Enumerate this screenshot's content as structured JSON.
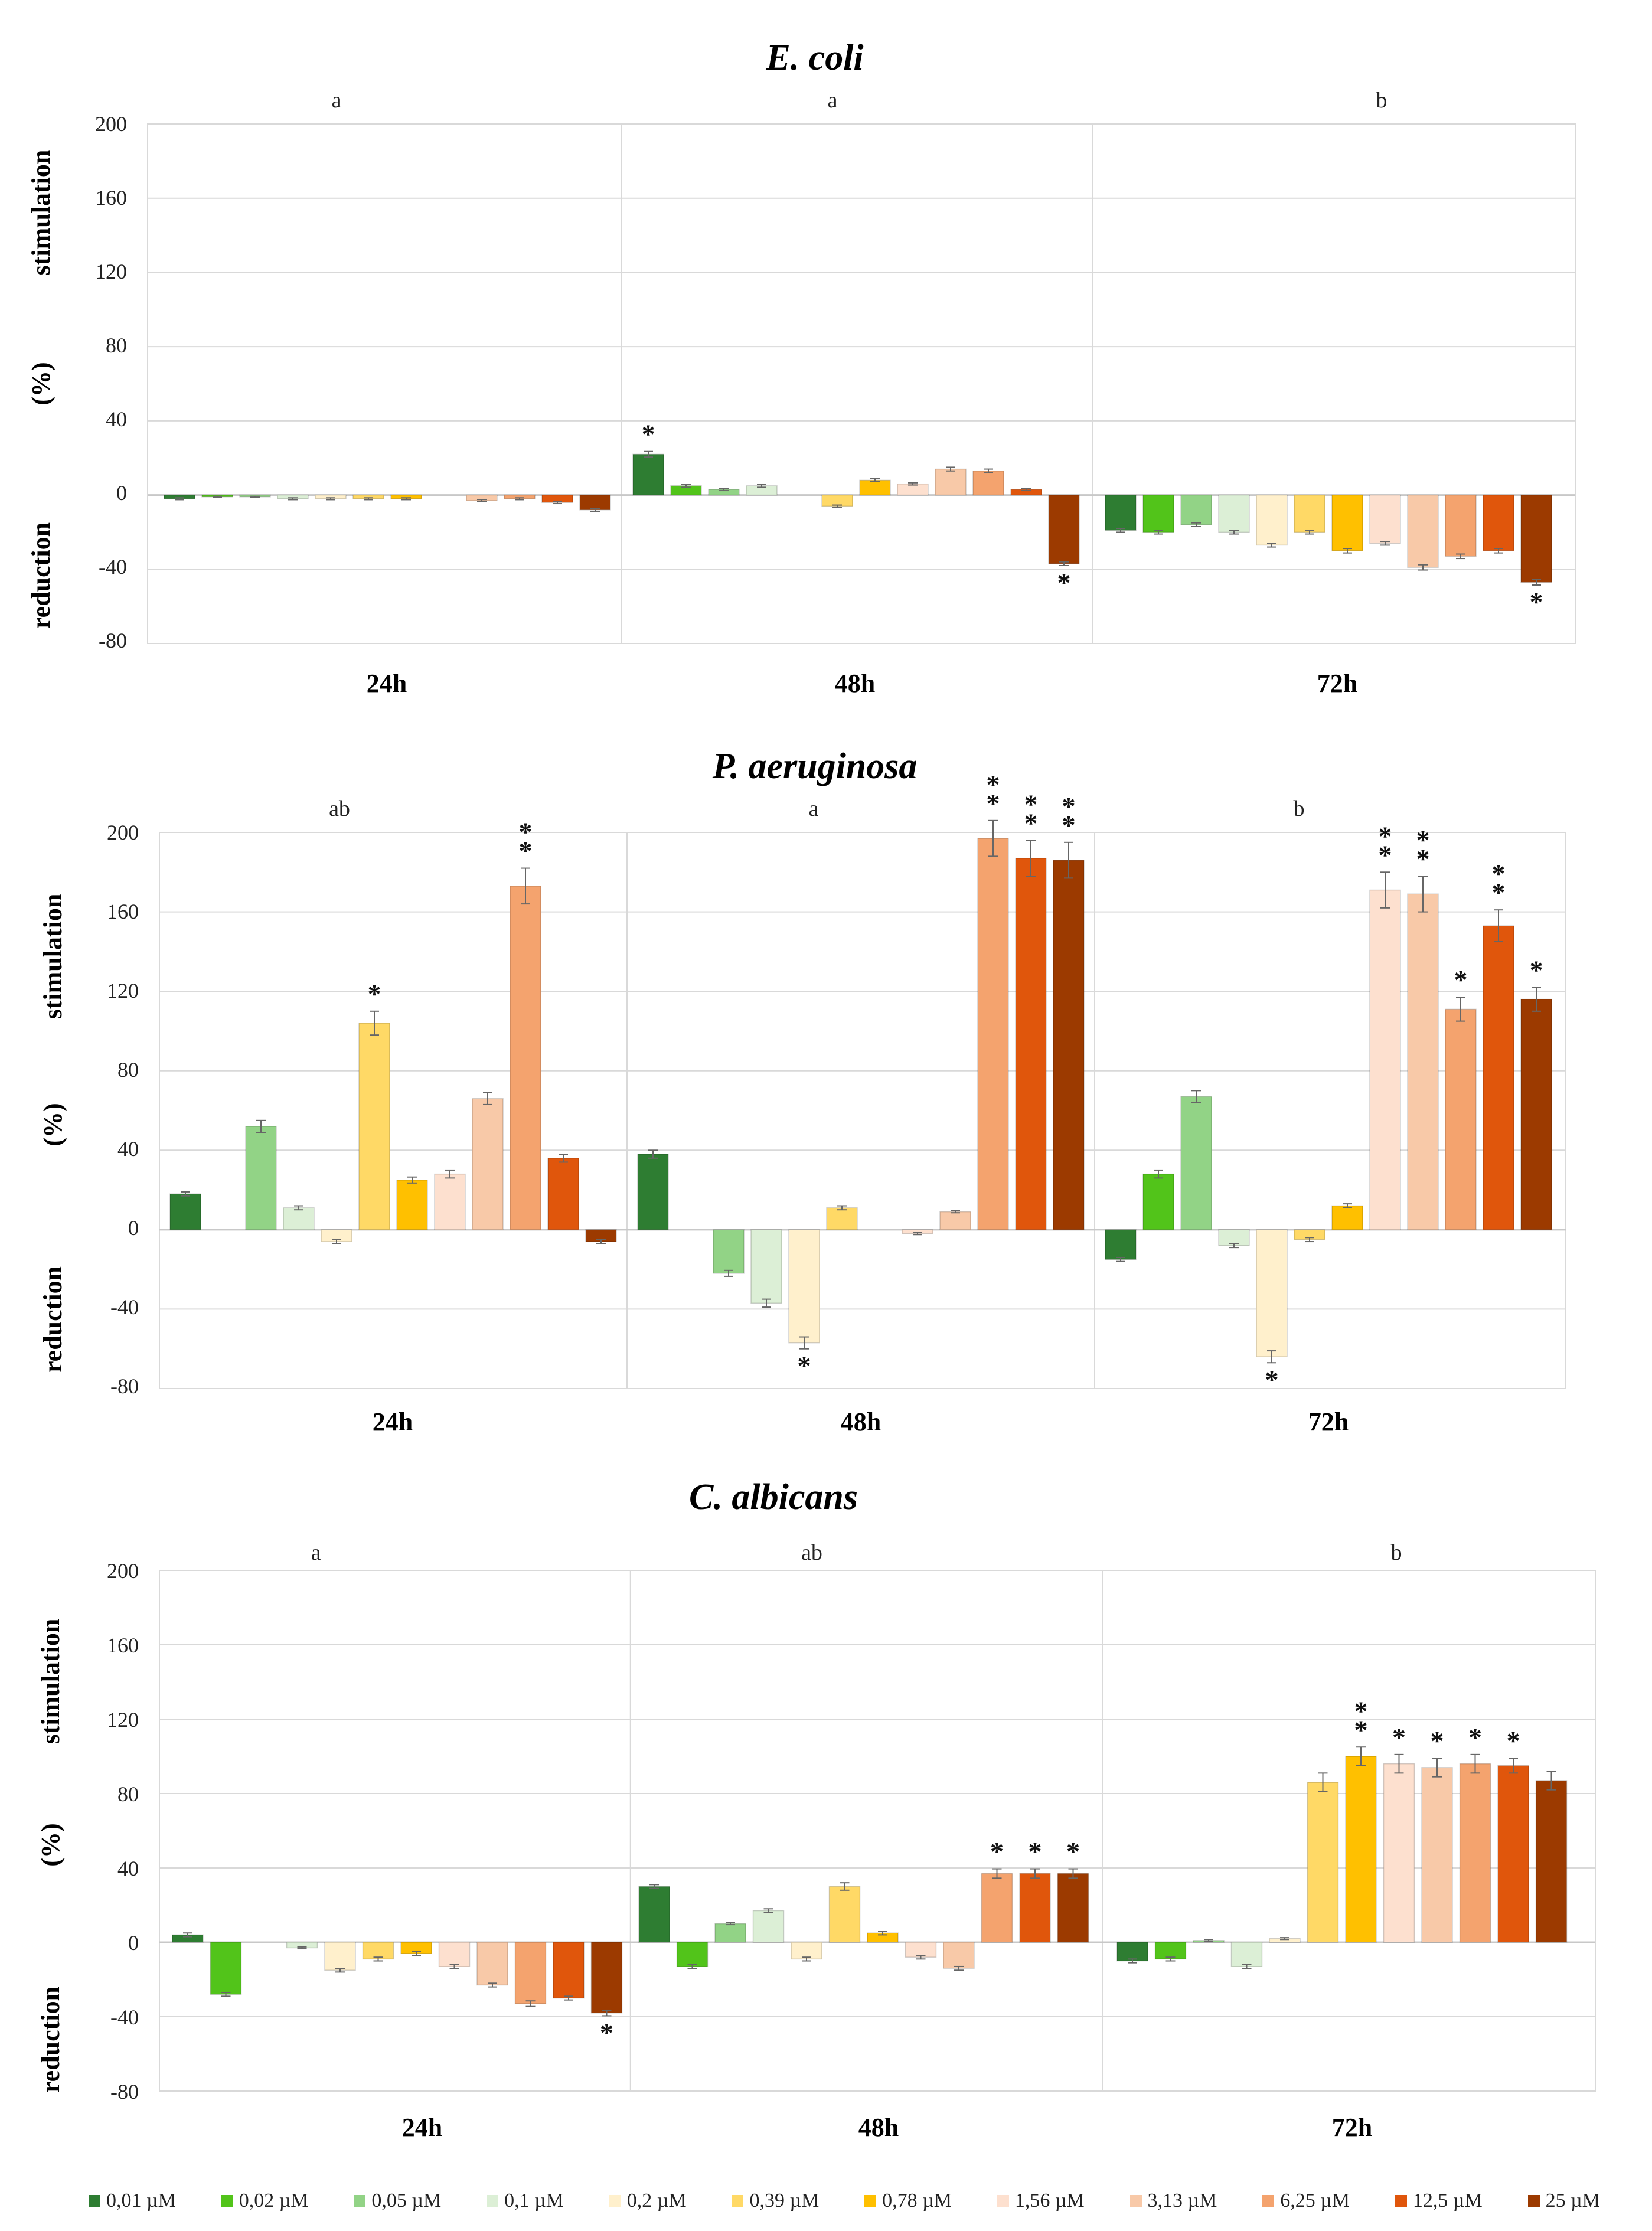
{
  "colors": [
    "#2e7d32",
    "#52c41a",
    "#92d386",
    "#dcefd6",
    "#fff0cc",
    "#ffd966",
    "#ffc000",
    "#fde0cf",
    "#f8c9a8",
    "#f4a36e",
    "#e0560c",
    "#9c3a00"
  ],
  "legend": [
    "0,01 µM",
    "0,02 µM",
    "0,05 µM",
    "0,1  µM",
    "0,2  µM",
    "0,39 µM",
    "0,78 µM",
    "1,56 µM",
    "3,13  µM",
    "6,25 µM",
    "12,5 µM",
    "25 µM"
  ],
  "chart_data": [
    {
      "type": "bar",
      "title": "E. coli",
      "ylabel_top": "stimulation",
      "ylabel_mid": "(%)",
      "ylabel_bottom": "reduction",
      "ylim": [
        -80,
        200
      ],
      "yticks": [
        "200",
        "160",
        "120",
        "80",
        "40",
        "0",
        "-40",
        "-80"
      ],
      "ytick_values": [
        200,
        160,
        120,
        80,
        40,
        0,
        -40,
        -80
      ],
      "categories": [
        "24h",
        "48h",
        "72h"
      ],
      "group_letters": [
        "a",
        "a",
        "b"
      ],
      "series_values": [
        [
          -2,
          -1,
          -1,
          -2,
          -2,
          -2,
          -2,
          0,
          -3,
          -2,
          -4,
          -8
        ],
        [
          22,
          5,
          3,
          5,
          0,
          -6,
          8,
          6,
          14,
          13,
          3,
          -37
        ],
        [
          -19,
          -20,
          -16,
          -20,
          -27,
          -20,
          -30,
          -26,
          -39,
          -33,
          -30,
          -47
        ]
      ],
      "errors": [
        [
          0.5,
          0.3,
          0.3,
          0.5,
          0.5,
          0.5,
          0.5,
          0.3,
          0.6,
          0.5,
          0.6,
          0.8
        ],
        [
          1.5,
          0.8,
          0.6,
          0.8,
          0.3,
          0.6,
          0.8,
          0.6,
          1,
          1,
          0.6,
          1
        ],
        [
          1,
          1,
          1,
          1,
          1,
          1,
          1.2,
          1,
          1.4,
          1.2,
          1.2,
          1.5
        ]
      ],
      "sig": [
        [
          "",
          "",
          "",
          "",
          "",
          "",
          "",
          "",
          "",
          "",
          "",
          ""
        ],
        [
          "*",
          "",
          "",
          "",
          "",
          "",
          "",
          "",
          "",
          "",
          "",
          "*"
        ],
        [
          "",
          "",
          "",
          "",
          "",
          "",
          "",
          "",
          "",
          "",
          "",
          "*"
        ]
      ]
    },
    {
      "type": "bar",
      "title": "P. aeruginosa",
      "ylabel_top": "stimulation",
      "ylabel_mid": "(%)",
      "ylabel_bottom": "reduction",
      "ylim": [
        -80,
        200
      ],
      "yticks": [
        "200",
        "160",
        "120",
        "80",
        "40",
        "0",
        "-40",
        "-80"
      ],
      "ytick_values": [
        200,
        160,
        120,
        80,
        40,
        0,
        -40,
        -80
      ],
      "categories": [
        "24h",
        "48h",
        "72h"
      ],
      "group_letters": [
        "ab",
        "a",
        "b"
      ],
      "series_values": [
        [
          18,
          0,
          52,
          11,
          -6,
          104,
          25,
          28,
          66,
          173,
          36,
          -6
        ],
        [
          38,
          0,
          -22,
          -37,
          -57,
          11,
          0,
          -2,
          9,
          197,
          187,
          186
        ],
        [
          -15,
          28,
          67,
          -8,
          -64,
          -5,
          12,
          171,
          169,
          111,
          153,
          116
        ]
      ],
      "errors": [
        [
          1,
          0,
          3,
          1,
          1,
          6,
          1.5,
          2,
          3,
          9,
          2,
          1
        ],
        [
          2,
          0,
          1.5,
          2,
          3,
          1,
          0,
          0.5,
          0.5,
          9,
          9,
          9
        ],
        [
          1,
          2,
          3,
          1,
          3,
          1,
          1,
          9,
          9,
          6,
          8,
          6
        ]
      ],
      "sig": [
        [
          "",
          "",
          "",
          "",
          "",
          "*",
          "",
          "",
          "",
          "**",
          "",
          ""
        ],
        [
          "",
          "",
          "",
          "",
          "*",
          "",
          "",
          "",
          "",
          "**",
          "**",
          "**"
        ],
        [
          "",
          "",
          "",
          "",
          "*",
          "",
          "",
          "**",
          "**",
          "*",
          "**",
          "*"
        ]
      ]
    },
    {
      "type": "bar",
      "title": "C. albicans",
      "ylabel_top": "stimulation",
      "ylabel_mid": "(%)",
      "ylabel_bottom": "reduction",
      "ylim": [
        -80,
        200
      ],
      "yticks": [
        "200",
        "160",
        "120",
        "80",
        "40",
        "0",
        "-40",
        "-80"
      ],
      "ytick_values": [
        200,
        160,
        120,
        80,
        40,
        0,
        -40,
        -80
      ],
      "categories": [
        "24h",
        "48h",
        "72h"
      ],
      "group_letters": [
        "a",
        "ab",
        "b"
      ],
      "series_values": [
        [
          4,
          -28,
          0,
          -3,
          -15,
          -9,
          -6,
          -13,
          -23,
          -33,
          -30,
          -38
        ],
        [
          30,
          -13,
          10,
          17,
          -9,
          30,
          5,
          -8,
          -14,
          37,
          37,
          37
        ],
        [
          -10,
          -9,
          1,
          -13,
          2,
          86,
          100,
          96,
          94,
          96,
          95,
          87
        ]
      ],
      "errors": [
        [
          1,
          1,
          0,
          0.5,
          1,
          1,
          1,
          1,
          1,
          1.5,
          1,
          1.5
        ],
        [
          1,
          1,
          0.5,
          1,
          1,
          2,
          1,
          1,
          1,
          2.5,
          2.5,
          2.5
        ],
        [
          1,
          1,
          0.5,
          1,
          0.5,
          5,
          5,
          5,
          5,
          5,
          4,
          5
        ]
      ],
      "sig": [
        [
          "",
          "",
          "",
          "",
          "",
          "",
          "",
          "",
          "",
          "",
          "",
          "*"
        ],
        [
          "",
          "",
          "",
          "",
          "",
          "",
          "",
          "",
          "",
          "*",
          "*",
          "*"
        ],
        [
          "",
          "",
          "",
          "",
          "",
          "",
          "**",
          "*",
          "*",
          "*",
          "*",
          ""
        ]
      ]
    }
  ]
}
